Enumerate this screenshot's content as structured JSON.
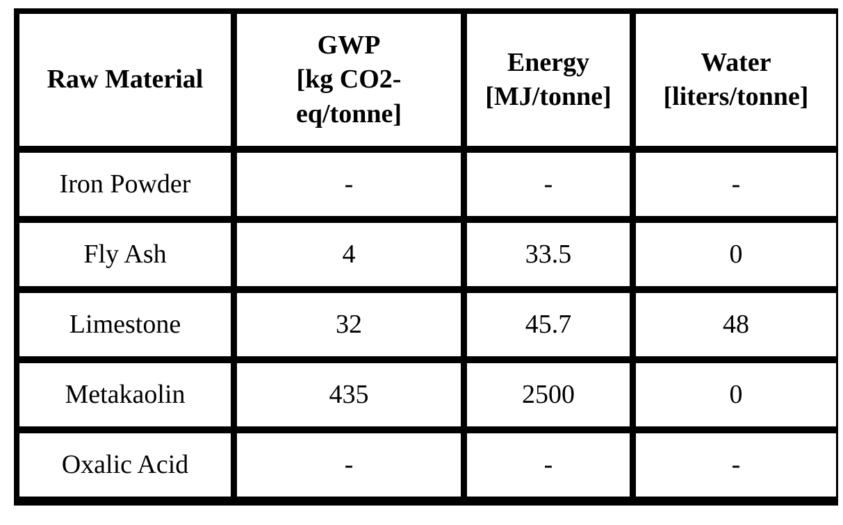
{
  "table": {
    "headers": [
      {
        "lines": [
          "Raw Material"
        ]
      },
      {
        "lines": [
          "GWP",
          "[kg CO2-",
          "eq/tonne]"
        ]
      },
      {
        "lines": [
          "Energy",
          "[MJ/tonne]"
        ]
      },
      {
        "lines": [
          "Water",
          "[liters/tonne]"
        ]
      }
    ],
    "rows": [
      {
        "material": "Iron Powder",
        "gwp": "-",
        "energy": "-",
        "water": "-"
      },
      {
        "material": "Fly Ash",
        "gwp": "4",
        "energy": "33.5",
        "water": "0"
      },
      {
        "material": "Limestone",
        "gwp": "32",
        "energy": "45.7",
        "water": "48"
      },
      {
        "material": "Metakaolin",
        "gwp": "435",
        "energy": "2500",
        "water": "0"
      },
      {
        "material": "Oxalic Acid",
        "gwp": "-",
        "energy": "-",
        "water": "-"
      }
    ]
  }
}
